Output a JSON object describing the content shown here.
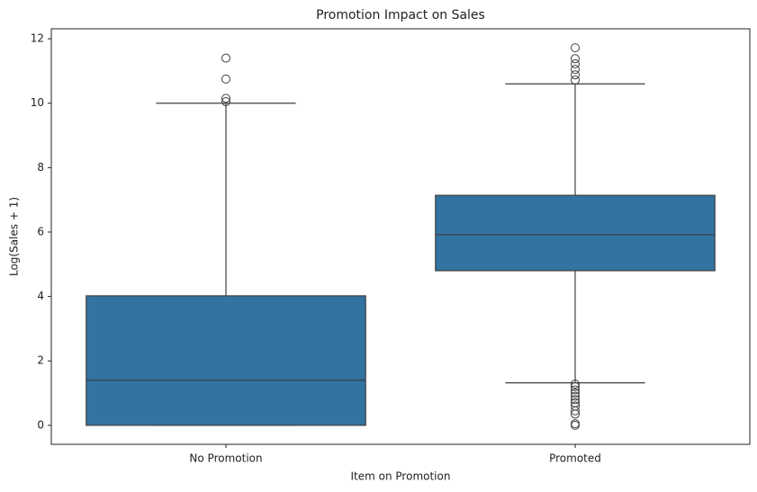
{
  "chart_data": {
    "type": "box",
    "title": "Promotion Impact on Sales",
    "xlabel": "Item on Promotion",
    "ylabel": "Log(Sales + 1)",
    "categories": [
      "No Promotion",
      "Promoted"
    ],
    "color": "#3274a1",
    "boxes": [
      {
        "whislo": 0,
        "q1": 0,
        "med": 1.4,
        "q3": 4.02,
        "whishi": 10.0,
        "fliers": [
          10.05,
          10.15,
          10.75,
          11.4
        ]
      },
      {
        "whislo": 1.32,
        "q1": 4.8,
        "med": 5.92,
        "q3": 7.14,
        "whishi": 10.6,
        "fliers": [
          10.72,
          10.88,
          11.05,
          11.22,
          11.38,
          11.72,
          1.28,
          1.2,
          1.1,
          1.0,
          0.9,
          0.8,
          0.7,
          0.6,
          0.45,
          0.35,
          0.05,
          0.0
        ]
      }
    ],
    "ylim": [
      -0.59,
      12.31
    ],
    "yticks": [
      0,
      2,
      4,
      6,
      8,
      10,
      12
    ]
  }
}
